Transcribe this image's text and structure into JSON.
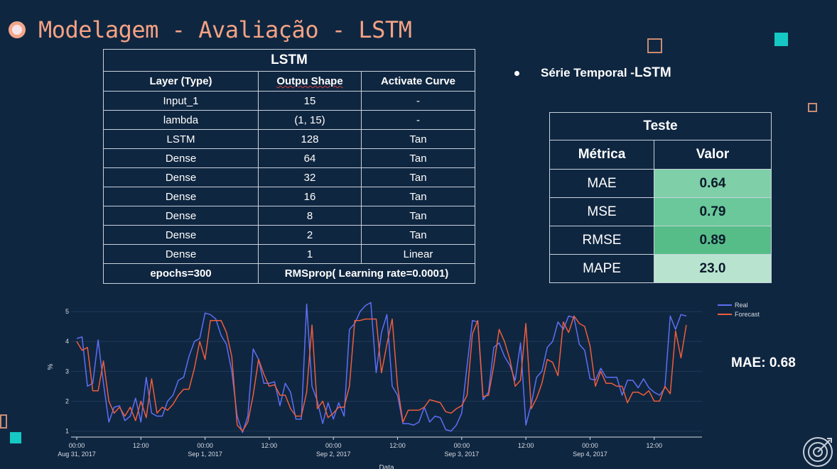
{
  "slide": {
    "title": "Modelagem - Avaliação - LSTM"
  },
  "layers_table": {
    "caption": "LSTM",
    "headers": [
      "Layer (Type)",
      "Outpu Shape",
      "Activate Curve"
    ],
    "rows": [
      [
        "Input_1",
        "15",
        "-"
      ],
      [
        "lambda",
        "(1, 15)",
        "-"
      ],
      [
        "LSTM",
        "128",
        "Tan"
      ],
      [
        "Dense",
        "64",
        "Tan"
      ],
      [
        "Dense",
        "32",
        "Tan"
      ],
      [
        "Dense",
        "16",
        "Tan"
      ],
      [
        "Dense",
        "8",
        "Tan"
      ],
      [
        "Dense",
        "2",
        "Tan"
      ],
      [
        "Dense",
        "1",
        "Linear"
      ]
    ],
    "footer": [
      "epochs=300",
      "RMSprop( Learning rate=0.0001)"
    ]
  },
  "bullet": {
    "prefix": "Série Temporal - ",
    "strong": "LSTM"
  },
  "metrics_table": {
    "caption": "Teste",
    "headers": [
      "Métrica",
      "Valor"
    ],
    "rows": [
      {
        "metric": "MAE",
        "value": "0.64",
        "color": "#7fd0a8"
      },
      {
        "metric": "MSE",
        "value": "0.79",
        "color": "#6ac89a"
      },
      {
        "metric": "RMSE",
        "value": "0.89",
        "color": "#56bd88"
      },
      {
        "metric": "MAPE",
        "value": "23.0",
        "color": "#b8e4cf"
      }
    ]
  },
  "mae_label": "MAE: 0.68",
  "colors": {
    "background": "#0f2640",
    "title": "#f4a284",
    "real": "#5d6ff5",
    "forecast": "#ee5d3c",
    "accent_teal": "#15c8c4"
  },
  "icons": [
    "circle-bullet-icon",
    "target-icon"
  ],
  "chart_data": {
    "type": "line",
    "xlabel": "Data",
    "ylabel": "%",
    "x_ticks": [
      [
        "00:00",
        "Aug 31, 2017"
      ],
      [
        "12:00",
        ""
      ],
      [
        "00:00",
        "Sep 1, 2017"
      ],
      [
        "12:00",
        ""
      ],
      [
        "00:00",
        "Sep 2, 2017"
      ],
      [
        "12:00",
        ""
      ],
      [
        "00:00",
        "Sep 3, 2017"
      ],
      [
        "12:00",
        ""
      ],
      [
        "00:00",
        "Sep 4, 2017"
      ],
      [
        "12:00",
        ""
      ]
    ],
    "x_range_hours": [
      0,
      118
    ],
    "y_ticks": [
      1,
      2,
      3,
      4,
      5
    ],
    "ylim": [
      0.8,
      5.5
    ],
    "legend_position": "top-right",
    "series": [
      {
        "name": "Real",
        "color": "#5d6ff5",
        "points": [
          [
            0,
            4.1
          ],
          [
            1,
            4.15
          ],
          [
            2,
            2.5
          ],
          [
            3,
            2.6
          ],
          [
            4,
            4.05
          ],
          [
            5,
            2.6
          ],
          [
            6,
            1.3
          ],
          [
            7,
            1.8
          ],
          [
            8,
            1.85
          ],
          [
            9,
            1.35
          ],
          [
            10,
            1.5
          ],
          [
            11,
            2.1
          ],
          [
            12,
            1.3
          ],
          [
            13,
            2.8
          ],
          [
            14,
            1.6
          ],
          [
            15,
            1.5
          ],
          [
            16,
            1.5
          ],
          [
            17,
            2.0
          ],
          [
            18,
            2.2
          ],
          [
            19,
            2.7
          ],
          [
            20,
            2.8
          ],
          [
            21,
            3.5
          ],
          [
            22,
            4.0
          ],
          [
            23,
            4.1
          ],
          [
            24,
            4.95
          ],
          [
            25,
            4.9
          ],
          [
            26,
            4.75
          ],
          [
            27,
            4.2
          ],
          [
            28,
            3.9
          ],
          [
            29,
            3.0
          ],
          [
            30,
            1.5
          ],
          [
            31,
            0.95
          ],
          [
            32,
            1.5
          ],
          [
            33,
            3.75
          ],
          [
            34,
            3.4
          ],
          [
            35,
            2.6
          ],
          [
            36,
            2.6
          ],
          [
            37,
            2.65
          ],
          [
            38,
            1.85
          ],
          [
            39,
            2.6
          ],
          [
            40,
            2.3
          ],
          [
            41,
            1.4
          ],
          [
            42,
            1.4
          ],
          [
            43,
            5.25
          ],
          [
            44,
            2.5
          ],
          [
            45,
            2.0
          ],
          [
            46,
            1.25
          ],
          [
            47,
            1.95
          ],
          [
            48,
            1.4
          ],
          [
            49,
            1.95
          ],
          [
            50,
            1.5
          ],
          [
            51,
            4.4
          ],
          [
            52,
            4.6
          ],
          [
            53,
            5.0
          ],
          [
            54,
            5.2
          ],
          [
            55,
            5.3
          ],
          [
            56,
            2.95
          ],
          [
            57,
            4.3
          ],
          [
            58,
            4.9
          ],
          [
            59,
            2.5
          ],
          [
            60,
            2.2
          ],
          [
            61,
            1.25
          ],
          [
            62,
            1.25
          ],
          [
            63,
            1.2
          ],
          [
            64,
            1.3
          ],
          [
            65,
            1.8
          ],
          [
            66,
            1.3
          ],
          [
            67,
            1.5
          ],
          [
            68,
            1.45
          ],
          [
            69,
            1.05
          ],
          [
            70,
            1.0
          ],
          [
            71,
            1.2
          ],
          [
            72,
            1.6
          ],
          [
            73,
            3.2
          ],
          [
            74,
            4.7
          ],
          [
            75,
            4.65
          ],
          [
            76,
            2.05
          ],
          [
            77,
            2.3
          ],
          [
            78,
            3.8
          ],
          [
            79,
            3.95
          ],
          [
            80,
            3.5
          ],
          [
            81,
            3.2
          ],
          [
            82,
            2.7
          ],
          [
            83,
            3.95
          ],
          [
            84,
            1.2
          ],
          [
            85,
            1.9
          ],
          [
            86,
            2.8
          ],
          [
            87,
            3.0
          ],
          [
            88,
            3.8
          ],
          [
            89,
            4.0
          ],
          [
            90,
            4.65
          ],
          [
            91,
            4.4
          ],
          [
            92,
            4.85
          ],
          [
            93,
            4.8
          ],
          [
            94,
            3.9
          ],
          [
            95,
            3.7
          ],
          [
            96,
            2.75
          ],
          [
            97,
            2.7
          ],
          [
            98,
            3.1
          ],
          [
            99,
            2.8
          ],
          [
            100,
            2.8
          ],
          [
            101,
            2.8
          ],
          [
            102,
            2.2
          ],
          [
            103,
            2.7
          ],
          [
            104,
            2.7
          ],
          [
            105,
            2.45
          ],
          [
            106,
            2.75
          ],
          [
            107,
            2.45
          ],
          [
            108,
            2.3
          ],
          [
            109,
            2.2
          ],
          [
            110,
            2.45
          ],
          [
            111,
            4.85
          ],
          [
            112,
            4.4
          ],
          [
            113,
            4.9
          ],
          [
            114,
            4.85
          ]
        ]
      },
      {
        "name": "Forecast",
        "color": "#ee5d3c",
        "points": [
          [
            0,
            4.0
          ],
          [
            1,
            3.7
          ],
          [
            2,
            3.8
          ],
          [
            3,
            2.35
          ],
          [
            4,
            2.35
          ],
          [
            5,
            3.35
          ],
          [
            6,
            2.0
          ],
          [
            7,
            1.6
          ],
          [
            8,
            1.8
          ],
          [
            9,
            1.5
          ],
          [
            10,
            1.8
          ],
          [
            11,
            1.35
          ],
          [
            12,
            2.0
          ],
          [
            13,
            1.45
          ],
          [
            14,
            2.75
          ],
          [
            15,
            1.6
          ],
          [
            16,
            1.8
          ],
          [
            17,
            1.7
          ],
          [
            18,
            1.9
          ],
          [
            19,
            2.2
          ],
          [
            20,
            2.4
          ],
          [
            21,
            2.4
          ],
          [
            22,
            3.1
          ],
          [
            23,
            4.0
          ],
          [
            24,
            3.4
          ],
          [
            25,
            4.7
          ],
          [
            26,
            4.7
          ],
          [
            27,
            4.7
          ],
          [
            28,
            4.3
          ],
          [
            29,
            3.5
          ],
          [
            30,
            1.2
          ],
          [
            31,
            1.0
          ],
          [
            32,
            1.3
          ],
          [
            33,
            2.2
          ],
          [
            34,
            3.4
          ],
          [
            35,
            2.9
          ],
          [
            36,
            2.5
          ],
          [
            37,
            2.55
          ],
          [
            38,
            2.2
          ],
          [
            39,
            2.2
          ],
          [
            40,
            1.75
          ],
          [
            41,
            1.5
          ],
          [
            42,
            1.5
          ],
          [
            43,
            2.3
          ],
          [
            44,
            4.55
          ],
          [
            45,
            1.75
          ],
          [
            46,
            2.0
          ],
          [
            47,
            1.45
          ],
          [
            48,
            1.6
          ],
          [
            49,
            1.8
          ],
          [
            50,
            1.8
          ],
          [
            51,
            2.5
          ],
          [
            52,
            4.7
          ],
          [
            53,
            4.7
          ],
          [
            54,
            4.75
          ],
          [
            55,
            4.75
          ],
          [
            56,
            4.75
          ],
          [
            57,
            2.95
          ],
          [
            58,
            3.9
          ],
          [
            59,
            4.75
          ],
          [
            60,
            2.5
          ],
          [
            61,
            1.3
          ],
          [
            62,
            1.7
          ],
          [
            63,
            1.7
          ],
          [
            64,
            1.7
          ],
          [
            65,
            1.8
          ],
          [
            66,
            2.05
          ],
          [
            67,
            2.0
          ],
          [
            68,
            1.95
          ],
          [
            69,
            1.65
          ],
          [
            70,
            1.6
          ],
          [
            71,
            1.75
          ],
          [
            72,
            1.85
          ],
          [
            73,
            2.2
          ],
          [
            74,
            4.25
          ],
          [
            75,
            4.7
          ],
          [
            76,
            2.15
          ],
          [
            77,
            2.2
          ],
          [
            78,
            3.2
          ],
          [
            79,
            4.4
          ],
          [
            80,
            4.0
          ],
          [
            81,
            3.4
          ],
          [
            82,
            2.5
          ],
          [
            83,
            2.7
          ],
          [
            84,
            4.6
          ],
          [
            85,
            1.75
          ],
          [
            86,
            2.1
          ],
          [
            87,
            2.6
          ],
          [
            88,
            3.4
          ],
          [
            89,
            3.3
          ],
          [
            90,
            2.85
          ],
          [
            91,
            4.65
          ],
          [
            92,
            4.3
          ],
          [
            93,
            4.85
          ],
          [
            94,
            4.6
          ],
          [
            95,
            4.5
          ],
          [
            96,
            3.85
          ],
          [
            97,
            2.5
          ],
          [
            98,
            3.0
          ],
          [
            99,
            2.6
          ],
          [
            100,
            2.6
          ],
          [
            101,
            2.5
          ],
          [
            102,
            2.5
          ],
          [
            103,
            1.95
          ],
          [
            104,
            2.3
          ],
          [
            105,
            2.3
          ],
          [
            106,
            2.2
          ],
          [
            107,
            2.35
          ],
          [
            108,
            2.0
          ],
          [
            109,
            2.0
          ],
          [
            110,
            2.5
          ],
          [
            111,
            2.25
          ],
          [
            112,
            4.35
          ],
          [
            113,
            3.45
          ],
          [
            114,
            4.55
          ]
        ]
      }
    ]
  }
}
